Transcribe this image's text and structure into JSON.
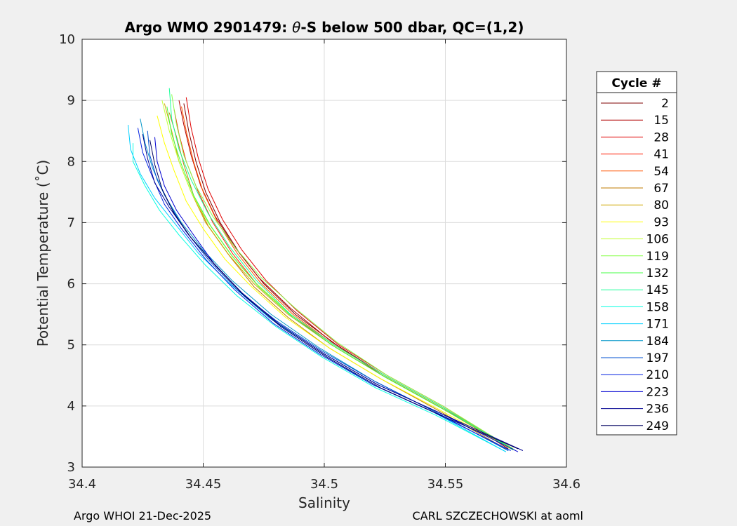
{
  "chart_data": {
    "type": "line",
    "title_parts": [
      "Argo WMO 2901479: ",
      "θ",
      "-S below 500 dbar,  QC=(1,2)"
    ],
    "xlabel": "Salinity",
    "ylabel": "Potential Temperature (˚C)",
    "xlim": [
      34.4,
      34.6
    ],
    "ylim": [
      3,
      10
    ],
    "x_ticks": [
      "34.4",
      "34.45",
      "34.5",
      "34.55",
      "34.6"
    ],
    "y_ticks": [
      "3",
      "4",
      "5",
      "6",
      "7",
      "8",
      "9",
      "10"
    ],
    "grid": true,
    "legend": {
      "title": "Cycle #",
      "placement": "right",
      "entries": [
        {
          "label": "2",
          "color": "#7f0000"
        },
        {
          "label": "15",
          "color": "#b00000"
        },
        {
          "label": "28",
          "color": "#e00000"
        },
        {
          "label": "41",
          "color": "#ff1a00"
        },
        {
          "label": "54",
          "color": "#ff5500"
        },
        {
          "label": "67",
          "color": "#bf7b00"
        },
        {
          "label": "80",
          "color": "#cfa800"
        },
        {
          "label": "93",
          "color": "#ffff00"
        },
        {
          "label": "106",
          "color": "#c4ff3a"
        },
        {
          "label": "119",
          "color": "#88ff4a"
        },
        {
          "label": "132",
          "color": "#45ff45"
        },
        {
          "label": "145",
          "color": "#1aff9a"
        },
        {
          "label": "158",
          "color": "#00ffe0"
        },
        {
          "label": "171",
          "color": "#00d0ff"
        },
        {
          "label": "184",
          "color": "#0096c8"
        },
        {
          "label": "197",
          "color": "#0050d0"
        },
        {
          "label": "210",
          "color": "#0020e0"
        },
        {
          "label": "223",
          "color": "#0000d0"
        },
        {
          "label": "236",
          "color": "#000090"
        },
        {
          "label": "249",
          "color": "#000060"
        }
      ]
    },
    "series": [
      {
        "color": "#7f0000",
        "points": [
          [
            34.442,
            8.95
          ],
          [
            34.444,
            8.5
          ],
          [
            34.447,
            8.0
          ],
          [
            34.451,
            7.5
          ],
          [
            34.457,
            7.0
          ],
          [
            34.465,
            6.5
          ],
          [
            34.475,
            6.0
          ],
          [
            34.488,
            5.5
          ],
          [
            34.505,
            5.0
          ],
          [
            34.525,
            4.5
          ],
          [
            34.548,
            4.0
          ],
          [
            34.576,
            3.3
          ]
        ]
      },
      {
        "color": "#b00000",
        "points": [
          [
            34.44,
            9.0
          ],
          [
            34.442,
            8.6
          ],
          [
            34.445,
            8.1
          ],
          [
            34.449,
            7.6
          ],
          [
            34.455,
            7.1
          ],
          [
            34.463,
            6.6
          ],
          [
            34.473,
            6.1
          ],
          [
            34.486,
            5.6
          ],
          [
            34.503,
            5.05
          ],
          [
            34.524,
            4.5
          ],
          [
            34.547,
            4.0
          ],
          [
            34.578,
            3.28
          ]
        ]
      },
      {
        "color": "#e00000",
        "points": [
          [
            34.443,
            9.05
          ],
          [
            34.445,
            8.55
          ],
          [
            34.448,
            8.05
          ],
          [
            34.452,
            7.55
          ],
          [
            34.458,
            7.05
          ],
          [
            34.466,
            6.55
          ],
          [
            34.476,
            6.05
          ],
          [
            34.489,
            5.55
          ],
          [
            34.506,
            5.0
          ],
          [
            34.526,
            4.5
          ],
          [
            34.549,
            4.0
          ],
          [
            34.577,
            3.31
          ]
        ]
      },
      {
        "color": "#ff1a00",
        "points": [
          [
            34.438,
            8.85
          ],
          [
            34.44,
            8.45
          ],
          [
            34.443,
            8.0
          ],
          [
            34.448,
            7.5
          ],
          [
            34.454,
            7.0
          ],
          [
            34.462,
            6.5
          ],
          [
            34.472,
            6.0
          ],
          [
            34.486,
            5.5
          ],
          [
            34.503,
            5.0
          ],
          [
            34.524,
            4.5
          ],
          [
            34.547,
            4.0
          ],
          [
            34.576,
            3.32
          ]
        ]
      },
      {
        "color": "#ff5500",
        "points": [
          [
            34.441,
            8.9
          ],
          [
            34.443,
            8.5
          ],
          [
            34.446,
            8.0
          ],
          [
            34.45,
            7.5
          ],
          [
            34.456,
            7.0
          ],
          [
            34.464,
            6.5
          ],
          [
            34.474,
            6.0
          ],
          [
            34.487,
            5.5
          ],
          [
            34.504,
            5.0
          ],
          [
            34.525,
            4.5
          ],
          [
            34.548,
            4.0
          ],
          [
            34.578,
            3.3
          ]
        ]
      },
      {
        "color": "#bf7b00",
        "points": [
          [
            34.436,
            8.8
          ],
          [
            34.439,
            8.4
          ],
          [
            34.442,
            7.95
          ],
          [
            34.446,
            7.45
          ],
          [
            34.452,
            6.95
          ],
          [
            34.461,
            6.45
          ],
          [
            34.471,
            5.95
          ],
          [
            34.485,
            5.45
          ],
          [
            34.502,
            4.95
          ],
          [
            34.523,
            4.45
          ],
          [
            34.546,
            3.95
          ],
          [
            34.575,
            3.3
          ]
        ]
      },
      {
        "color": "#cfa800",
        "points": [
          [
            34.434,
            8.95
          ],
          [
            34.437,
            8.5
          ],
          [
            34.44,
            8.0
          ],
          [
            34.445,
            7.5
          ],
          [
            34.451,
            7.0
          ],
          [
            34.46,
            6.5
          ],
          [
            34.471,
            6.0
          ],
          [
            34.485,
            5.5
          ],
          [
            34.503,
            5.0
          ],
          [
            34.524,
            4.5
          ],
          [
            34.547,
            4.0
          ],
          [
            34.577,
            3.3
          ]
        ]
      },
      {
        "color": "#ffff00",
        "points": [
          [
            34.431,
            8.75
          ],
          [
            34.434,
            8.3
          ],
          [
            34.438,
            7.85
          ],
          [
            34.443,
            7.35
          ],
          [
            34.45,
            6.9
          ],
          [
            34.459,
            6.4
          ],
          [
            34.47,
            5.95
          ],
          [
            34.484,
            5.45
          ],
          [
            34.502,
            4.95
          ],
          [
            34.523,
            4.45
          ],
          [
            34.547,
            3.95
          ],
          [
            34.577,
            3.3
          ]
        ]
      },
      {
        "color": "#c4ff3a",
        "points": [
          [
            34.433,
            9.0
          ],
          [
            34.436,
            8.5
          ],
          [
            34.44,
            8.0
          ],
          [
            34.445,
            7.5
          ],
          [
            34.452,
            7.0
          ],
          [
            34.461,
            6.5
          ],
          [
            34.472,
            6.0
          ],
          [
            34.486,
            5.5
          ],
          [
            34.504,
            5.0
          ],
          [
            34.525,
            4.5
          ],
          [
            34.548,
            4.0
          ],
          [
            34.578,
            3.28
          ]
        ]
      },
      {
        "color": "#88ff4a",
        "points": [
          [
            34.437,
            9.1
          ],
          [
            34.439,
            8.6
          ],
          [
            34.442,
            8.1
          ],
          [
            34.447,
            7.6
          ],
          [
            34.454,
            7.1
          ],
          [
            34.463,
            6.6
          ],
          [
            34.474,
            6.1
          ],
          [
            34.488,
            5.6
          ],
          [
            34.505,
            5.05
          ],
          [
            34.526,
            4.5
          ],
          [
            34.549,
            4.0
          ],
          [
            34.579,
            3.27
          ]
        ]
      },
      {
        "color": "#45ff45",
        "points": [
          [
            34.435,
            8.9
          ],
          [
            34.437,
            8.45
          ],
          [
            34.441,
            7.95
          ],
          [
            34.446,
            7.45
          ],
          [
            34.453,
            6.95
          ],
          [
            34.462,
            6.45
          ],
          [
            34.473,
            5.95
          ],
          [
            34.487,
            5.45
          ],
          [
            34.505,
            4.95
          ],
          [
            34.526,
            4.45
          ],
          [
            34.549,
            3.95
          ],
          [
            34.578,
            3.3
          ]
        ]
      },
      {
        "color": "#1aff9a",
        "points": [
          [
            34.436,
            9.2
          ],
          [
            34.437,
            8.7
          ],
          [
            34.44,
            8.2
          ],
          [
            34.445,
            7.7
          ],
          [
            34.452,
            7.15
          ],
          [
            34.461,
            6.6
          ],
          [
            34.472,
            6.05
          ],
          [
            34.486,
            5.5
          ],
          [
            34.504,
            5.0
          ],
          [
            34.525,
            4.5
          ],
          [
            34.548,
            4.0
          ],
          [
            34.578,
            3.28
          ]
        ]
      },
      {
        "color": "#00ffe0",
        "points": [
          [
            34.421,
            8.3
          ],
          [
            34.421,
            8.0
          ],
          [
            34.426,
            7.6
          ],
          [
            34.432,
            7.2
          ],
          [
            34.44,
            6.8
          ],
          [
            34.451,
            6.3
          ],
          [
            34.464,
            5.8
          ],
          [
            34.48,
            5.3
          ],
          [
            34.499,
            4.8
          ],
          [
            34.521,
            4.3
          ],
          [
            34.546,
            3.85
          ],
          [
            34.575,
            3.25
          ]
        ]
      },
      {
        "color": "#00d0ff",
        "points": [
          [
            34.419,
            8.6
          ],
          [
            34.42,
            8.2
          ],
          [
            34.424,
            7.8
          ],
          [
            34.43,
            7.4
          ],
          [
            34.438,
            7.0
          ],
          [
            34.448,
            6.5
          ],
          [
            34.461,
            6.0
          ],
          [
            34.477,
            5.45
          ],
          [
            34.497,
            4.9
          ],
          [
            34.52,
            4.35
          ],
          [
            34.545,
            3.9
          ],
          [
            34.575,
            3.25
          ]
        ]
      },
      {
        "color": "#0096c8",
        "points": [
          [
            34.424,
            8.7
          ],
          [
            34.426,
            8.3
          ],
          [
            34.429,
            7.9
          ],
          [
            34.434,
            7.45
          ],
          [
            34.441,
            7.0
          ],
          [
            34.45,
            6.55
          ],
          [
            34.462,
            6.05
          ],
          [
            34.478,
            5.5
          ],
          [
            34.498,
            4.95
          ],
          [
            34.521,
            4.4
          ],
          [
            34.546,
            3.9
          ],
          [
            34.576,
            3.27
          ]
        ]
      },
      {
        "color": "#0050d0",
        "points": [
          [
            34.427,
            8.5
          ],
          [
            34.428,
            8.1
          ],
          [
            34.431,
            7.7
          ],
          [
            34.436,
            7.3
          ],
          [
            34.443,
            6.85
          ],
          [
            34.452,
            6.4
          ],
          [
            34.464,
            5.9
          ],
          [
            34.48,
            5.4
          ],
          [
            34.499,
            4.9
          ],
          [
            34.521,
            4.4
          ],
          [
            34.546,
            3.9
          ],
          [
            34.576,
            3.27
          ]
        ]
      },
      {
        "color": "#0020e0",
        "points": [
          [
            34.423,
            8.55
          ],
          [
            34.425,
            8.15
          ],
          [
            34.429,
            7.75
          ],
          [
            34.434,
            7.3
          ],
          [
            34.441,
            6.9
          ],
          [
            34.451,
            6.4
          ],
          [
            34.463,
            5.9
          ],
          [
            34.479,
            5.35
          ],
          [
            34.498,
            4.85
          ],
          [
            34.52,
            4.35
          ],
          [
            34.545,
            3.9
          ],
          [
            34.577,
            3.27
          ]
        ]
      },
      {
        "color": "#0000d0",
        "points": [
          [
            34.43,
            8.4
          ],
          [
            34.431,
            8.0
          ],
          [
            34.434,
            7.6
          ],
          [
            34.439,
            7.2
          ],
          [
            34.446,
            6.8
          ],
          [
            34.455,
            6.3
          ],
          [
            34.466,
            5.85
          ],
          [
            34.481,
            5.35
          ],
          [
            34.5,
            4.85
          ],
          [
            34.522,
            4.35
          ],
          [
            34.547,
            3.9
          ],
          [
            34.58,
            3.25
          ]
        ]
      },
      {
        "color": "#000090",
        "points": [
          [
            34.425,
            8.45
          ],
          [
            34.427,
            8.05
          ],
          [
            34.43,
            7.65
          ],
          [
            34.436,
            7.25
          ],
          [
            34.444,
            6.8
          ],
          [
            34.454,
            6.35
          ],
          [
            34.466,
            5.85
          ],
          [
            34.481,
            5.35
          ],
          [
            34.5,
            4.85
          ],
          [
            34.522,
            4.35
          ],
          [
            34.547,
            3.9
          ],
          [
            34.582,
            3.27
          ]
        ]
      },
      {
        "color": "#000060",
        "points": [
          [
            34.428,
            8.35
          ],
          [
            34.43,
            7.95
          ],
          [
            34.433,
            7.55
          ],
          [
            34.438,
            7.15
          ],
          [
            34.445,
            6.75
          ],
          [
            34.455,
            6.3
          ],
          [
            34.467,
            5.8
          ],
          [
            34.482,
            5.3
          ],
          [
            34.501,
            4.8
          ],
          [
            34.523,
            4.3
          ],
          [
            34.548,
            3.85
          ],
          [
            34.58,
            3.3
          ]
        ]
      }
    ]
  },
  "footer": {
    "left": "Argo WHOI 21-Dec-2025",
    "right": "CARL SZCZECHOWSKI at aoml"
  }
}
